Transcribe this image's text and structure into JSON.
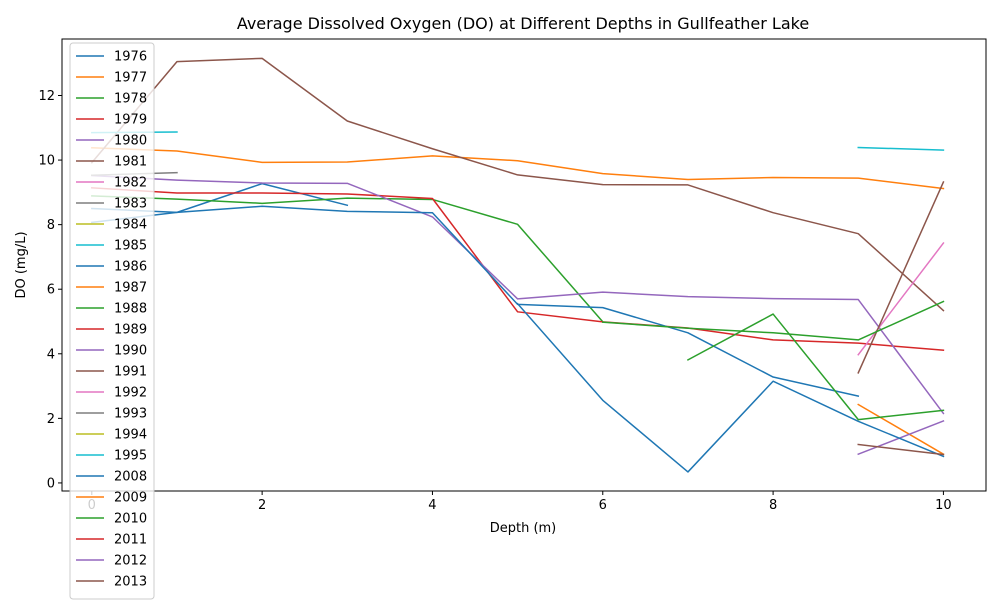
{
  "chart_data": {
    "type": "line",
    "title": "Average Dissolved Oxygen (DO) at Different Depths in Gullfeather Lake",
    "xlabel": "Depth (m)",
    "ylabel": "DO (mg/L)",
    "xlim": [
      -0.35,
      10.5
    ],
    "ylim": [
      -0.25,
      13.75
    ],
    "xticks": [
      0,
      2,
      4,
      6,
      8,
      10
    ],
    "yticks": [
      0,
      2,
      4,
      6,
      8,
      10,
      12
    ],
    "grid": false,
    "legend_position": "upper-left",
    "series": [
      {
        "name": "1976",
        "color": "#1f77b4",
        "points": [
          [
            0,
            8.07
          ],
          [
            1,
            8.38
          ],
          [
            2,
            9.27
          ],
          [
            3,
            8.6
          ]
        ]
      },
      {
        "name": "1977",
        "color": "#ff7f0e",
        "points": [
          [
            0,
            10.38
          ],
          [
            1,
            10.28
          ],
          [
            2,
            9.93
          ],
          [
            3,
            9.94
          ],
          [
            4,
            10.13
          ],
          [
            5,
            9.98
          ],
          [
            6,
            9.58
          ],
          [
            7,
            9.4
          ],
          [
            8,
            9.46
          ],
          [
            9,
            9.44
          ],
          [
            10,
            9.12
          ]
        ]
      },
      {
        "name": "1978",
        "color": "#2ca02c",
        "points": [
          [
            0,
            8.89
          ],
          [
            1,
            8.79
          ],
          [
            2,
            8.66
          ],
          [
            3,
            8.82
          ],
          [
            4,
            8.78
          ],
          [
            5,
            8.01
          ],
          [
            6,
            4.99
          ]
        ]
      },
      {
        "name": "1979",
        "color": "#d62728",
        "points": [
          [
            0,
            9.14
          ],
          [
            1,
            8.98
          ],
          [
            2,
            8.98
          ],
          [
            3,
            8.95
          ],
          [
            4,
            8.81
          ],
          [
            5,
            5.3
          ],
          [
            6,
            4.99
          ],
          [
            7,
            4.8
          ],
          [
            8,
            4.43
          ],
          [
            9,
            4.33
          ],
          [
            10,
            4.11
          ]
        ]
      },
      {
        "name": "1980",
        "color": "#9467bd",
        "points": [
          [
            0,
            9.52
          ],
          [
            1,
            9.38
          ],
          [
            2,
            9.29
          ],
          [
            3,
            9.28
          ],
          [
            4,
            8.24
          ],
          [
            5,
            5.7
          ],
          [
            6,
            5.91
          ],
          [
            7,
            5.77
          ],
          [
            8,
            5.71
          ],
          [
            9,
            5.68
          ],
          [
            10,
            2.15
          ]
        ]
      },
      {
        "name": "1981",
        "color": "#8c564b",
        "points": [
          [
            0,
            9.92
          ],
          [
            1,
            13.05
          ],
          [
            2,
            13.15
          ],
          [
            3,
            11.21
          ],
          [
            4,
            10.35
          ],
          [
            5,
            9.54
          ],
          [
            6,
            9.24
          ],
          [
            7,
            9.23
          ],
          [
            8,
            8.37
          ],
          [
            9,
            7.72
          ],
          [
            10,
            5.34
          ]
        ]
      },
      {
        "name": "1982",
        "color": "#e377c2",
        "points": [
          [
            9,
            3.97
          ],
          [
            10,
            7.43
          ]
        ]
      },
      {
        "name": "1983",
        "color": "#7f7f7f",
        "points": [
          [
            0,
            9.53
          ],
          [
            1,
            9.61
          ]
        ]
      },
      {
        "name": "1984",
        "color": "#bcbd22",
        "points": []
      },
      {
        "name": "1985",
        "color": "#17becf",
        "points": [
          [
            0,
            10.85
          ],
          [
            1,
            10.87
          ]
        ]
      },
      {
        "name": "1986",
        "color": "#1f77b4",
        "points": [
          [
            0,
            8.5
          ],
          [
            1,
            8.38
          ],
          [
            2,
            8.57
          ],
          [
            3,
            8.41
          ],
          [
            4,
            8.37
          ],
          [
            5,
            5.53
          ],
          [
            6,
            5.43
          ],
          [
            7,
            4.65
          ],
          [
            8,
            3.28
          ],
          [
            9,
            2.69
          ]
        ]
      },
      {
        "name": "1987",
        "color": "#ff7f0e",
        "points": [
          [
            9,
            2.43
          ],
          [
            10,
            0.89
          ]
        ]
      },
      {
        "name": "1988",
        "color": "#2ca02c",
        "points": [
          [
            7,
            3.81
          ],
          [
            8,
            5.23
          ],
          [
            9,
            1.96
          ],
          [
            10,
            2.25
          ]
        ]
      },
      {
        "name": "1989",
        "color": "#d62728",
        "points": []
      },
      {
        "name": "1990",
        "color": "#9467bd",
        "points": [
          [
            9,
            0.89
          ],
          [
            10,
            1.92
          ]
        ]
      },
      {
        "name": "1991",
        "color": "#8c564b",
        "points": [
          [
            9,
            3.41
          ],
          [
            10,
            9.32
          ]
        ]
      },
      {
        "name": "1992",
        "color": "#e377c2",
        "points": []
      },
      {
        "name": "1993",
        "color": "#7f7f7f",
        "points": []
      },
      {
        "name": "1994",
        "color": "#bcbd22",
        "points": []
      },
      {
        "name": "1995",
        "color": "#17becf",
        "points": [
          [
            9,
            10.39
          ],
          [
            10,
            10.31
          ]
        ]
      },
      {
        "name": "2008",
        "color": "#1f77b4",
        "points": [
          [
            5,
            5.55
          ],
          [
            6,
            2.56
          ],
          [
            7,
            0.34
          ],
          [
            8,
            3.15
          ],
          [
            9,
            1.91
          ],
          [
            10,
            0.82
          ]
        ]
      },
      {
        "name": "2009",
        "color": "#ff7f0e",
        "points": []
      },
      {
        "name": "2010",
        "color": "#2ca02c",
        "points": [
          [
            6,
            4.98
          ],
          [
            7,
            4.79
          ],
          [
            8,
            4.65
          ],
          [
            9,
            4.43
          ],
          [
            10,
            5.62
          ]
        ]
      },
      {
        "name": "2011",
        "color": "#d62728",
        "points": []
      },
      {
        "name": "2012",
        "color": "#9467bd",
        "points": []
      },
      {
        "name": "2013",
        "color": "#8c564b",
        "points": [
          [
            9,
            1.19
          ],
          [
            10,
            0.88
          ]
        ]
      }
    ]
  }
}
